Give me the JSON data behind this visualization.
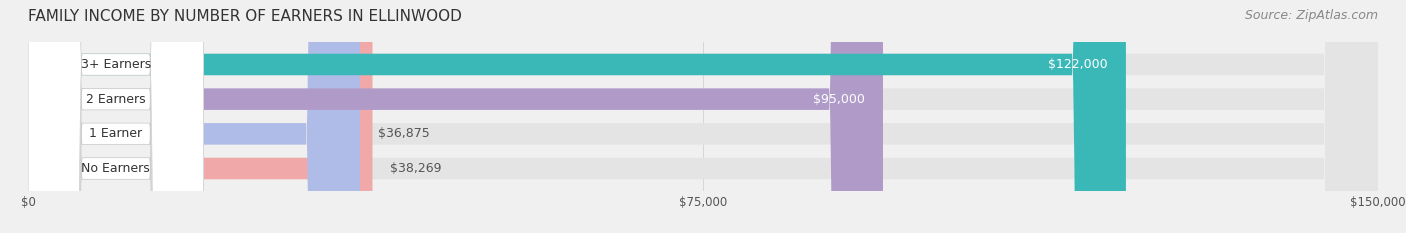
{
  "title": "FAMILY INCOME BY NUMBER OF EARNERS IN ELLINWOOD",
  "source": "Source: ZipAtlas.com",
  "categories": [
    "No Earners",
    "1 Earner",
    "2 Earners",
    "3+ Earners"
  ],
  "values": [
    38269,
    36875,
    95000,
    122000
  ],
  "bar_colors": [
    "#f0a8a8",
    "#b0bce8",
    "#b09ac8",
    "#3ab8b8"
  ],
  "label_colors": [
    "#555555",
    "#555555",
    "#ffffff",
    "#ffffff"
  ],
  "value_labels": [
    "$38,269",
    "$36,875",
    "$95,000",
    "$122,000"
  ],
  "xlim": [
    0,
    150000
  ],
  "xticks": [
    0,
    75000,
    150000
  ],
  "xtick_labels": [
    "$0",
    "$75,000",
    "$150,000"
  ],
  "background_color": "#f0f0f0",
  "bar_background": "#e8e8e8",
  "title_fontsize": 11,
  "source_fontsize": 9,
  "label_fontsize": 9,
  "value_fontsize": 9
}
